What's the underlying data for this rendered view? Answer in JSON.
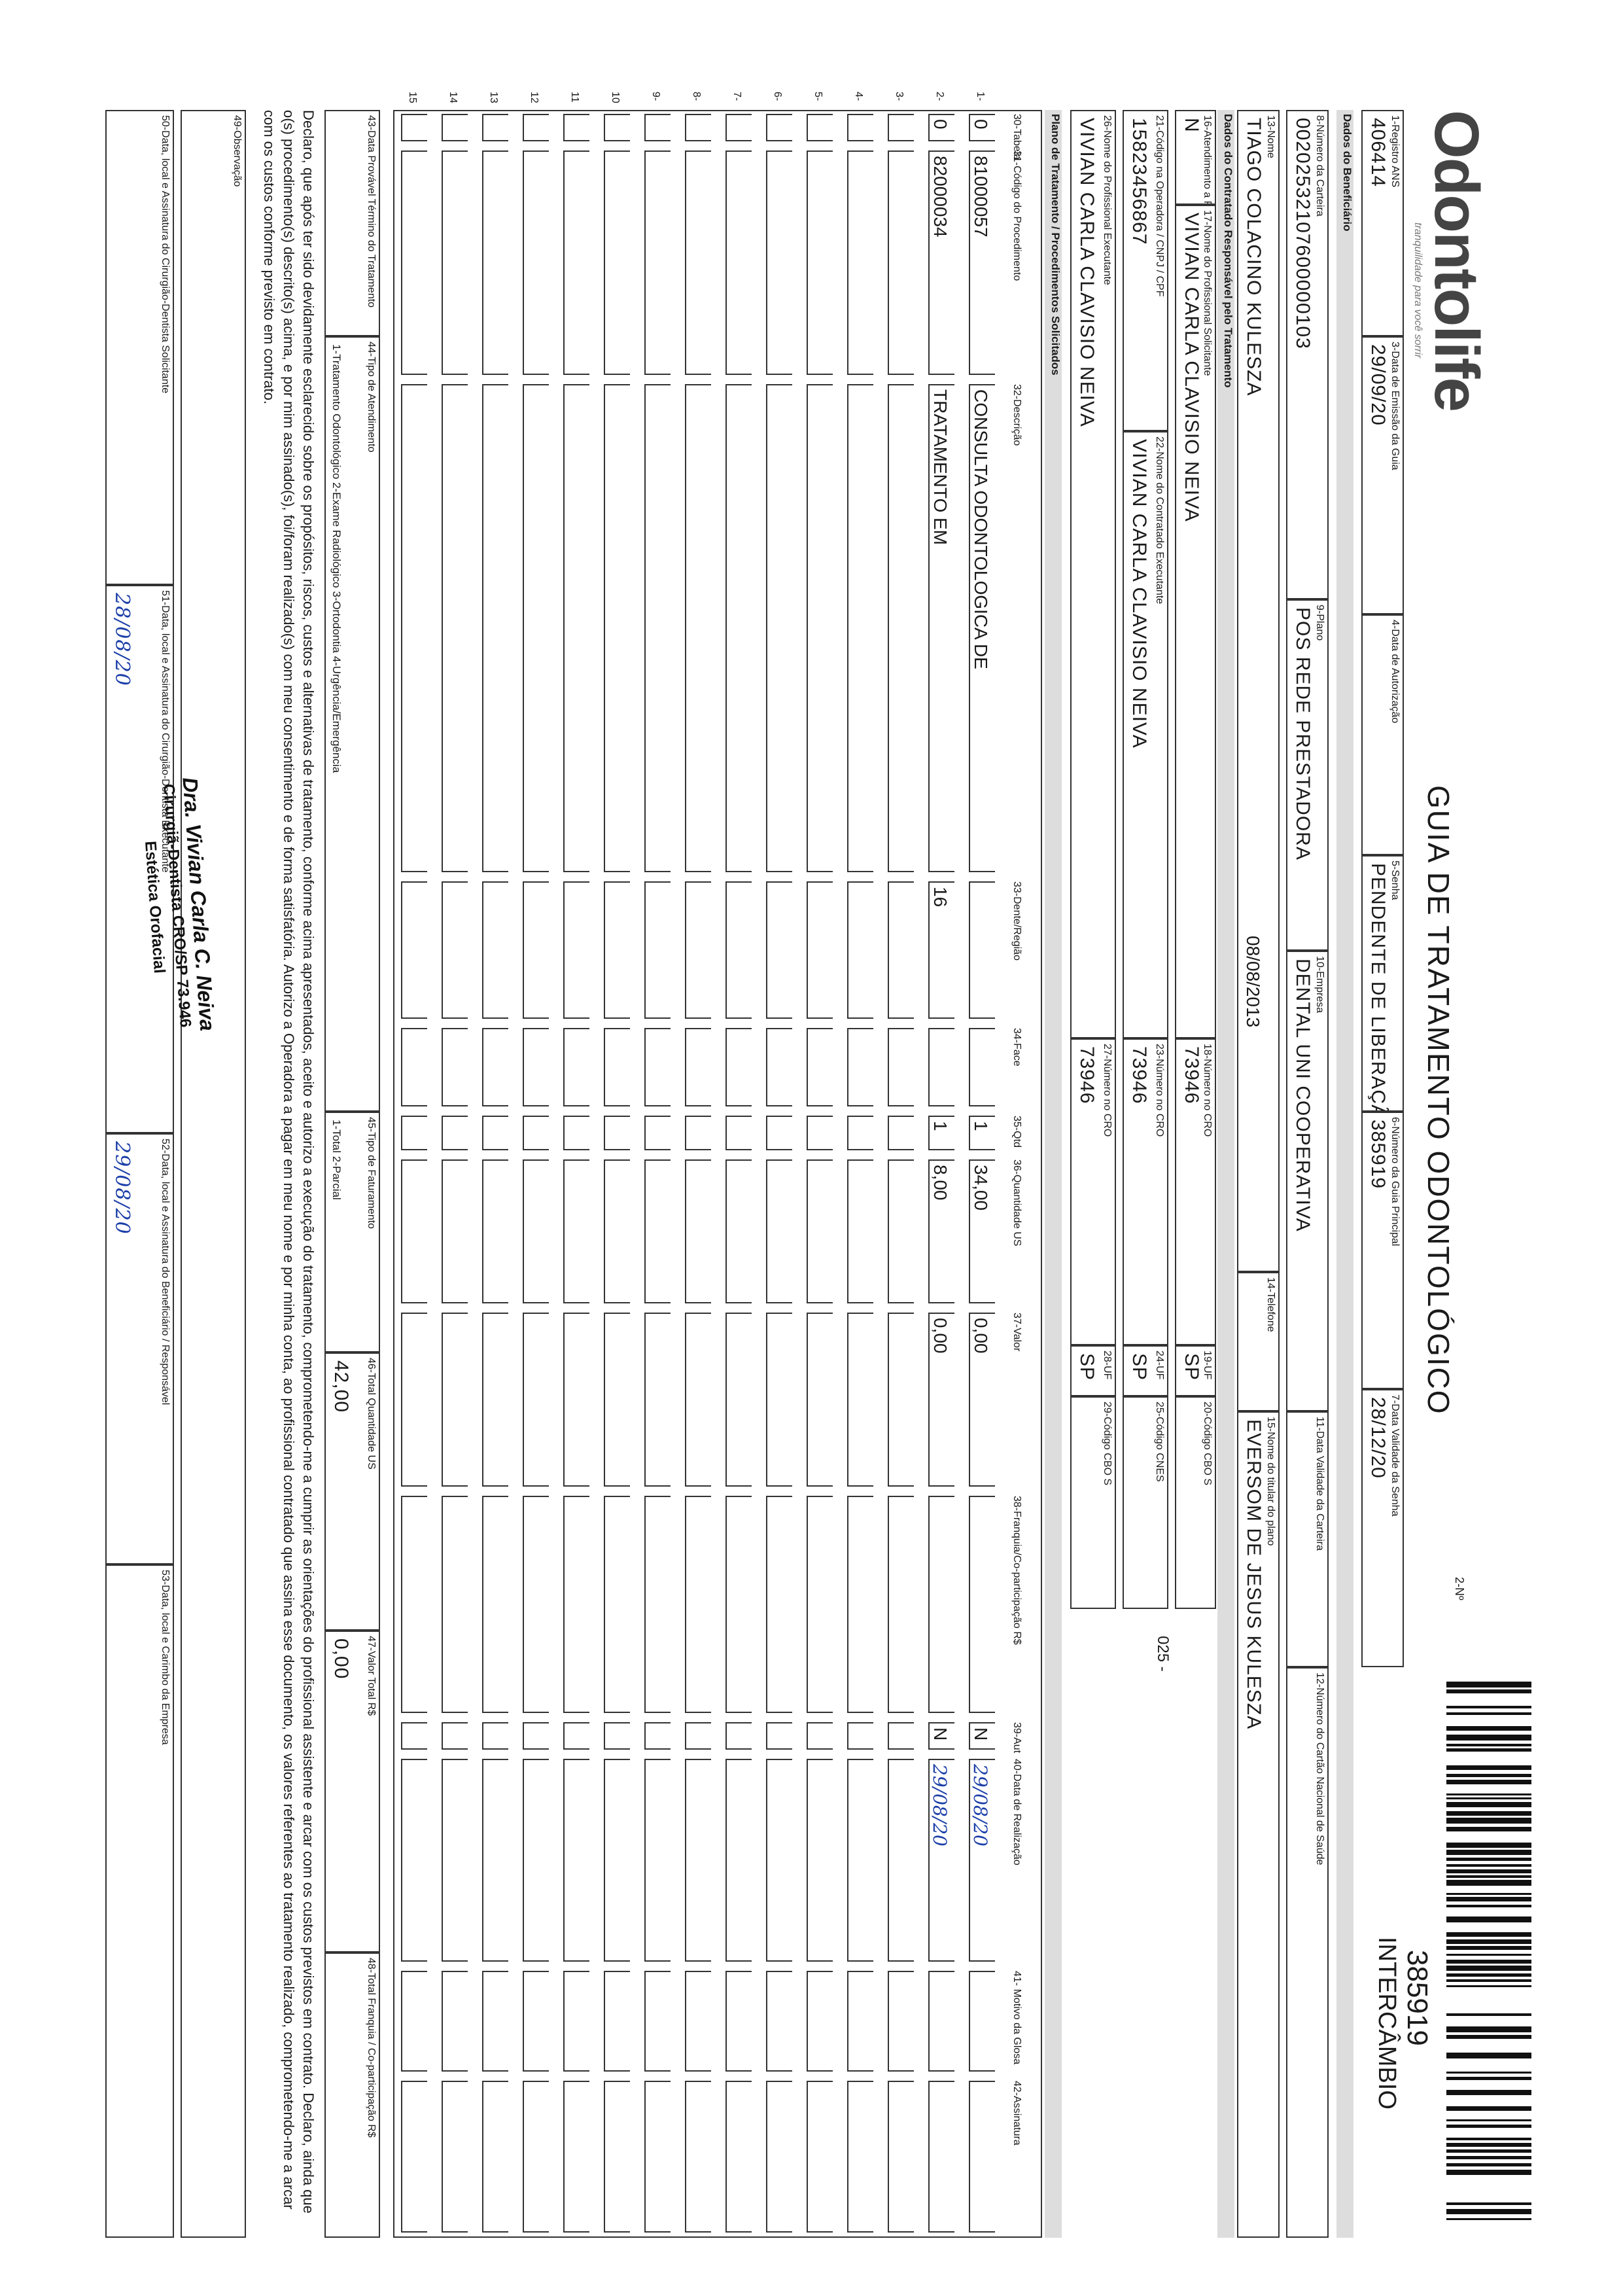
{
  "header": {
    "logo": "Odontolife",
    "tagline": "tranquilidade para você sorrir",
    "title": "GUIA DE TRATAMENTO ODONTOLÓGICO",
    "copy_label": "2-Nº",
    "guide_number": "385919",
    "exchange": "INTERCÂMBIO"
  },
  "sections": [
    "Dados do Beneficiário",
    "Dados do Contratado Responsável pelo Tratamento",
    "Plano de Tratamento / Procedimentos Solicitados"
  ],
  "fields": [
    {
      "label": "1-Registro ANS",
      "value": "406414"
    },
    {
      "label": "3-Data de Emissão da Guia",
      "value": "29/09/20"
    },
    {
      "label": "4-Data de Autorização",
      "value": null
    },
    {
      "label": "5-Senha",
      "value": "PENDENTE DE LIBERAÇÃO"
    },
    {
      "label": "6-Número da Guia Principal",
      "value": "385919"
    },
    {
      "label": "7-Data Validade da Senha",
      "value": "28/12/20"
    },
    {
      "label": "8-Número da Carteira",
      "value": "00202532107600000103"
    },
    {
      "label": "9-Plano",
      "value": "POS REDE PRESTADORA"
    },
    {
      "label": "10-Empresa",
      "value": "DENTAL UNI COOPERATIVA"
    },
    {
      "label": "11-Data Validade da Carteira",
      "value": null
    },
    {
      "label": "12-Número do Cartão Nacional de Saúde",
      "value": null
    },
    {
      "label": "13-Nome",
      "value": "TIAGO COLACINO KULESZA"
    },
    {
      "label": "14-Telefone",
      "value": null
    },
    {
      "label": "15-Nome do titular do plano",
      "value": "EVERSOM DE JESUS KULESZA"
    },
    {
      "label": "16-Atendimento a RN",
      "value": "N"
    },
    {
      "label": "17-Nome do Profissional Solicitante",
      "value": "VIVIAN CARLA CLAVISIO NEIVA"
    },
    {
      "label": "18-Número no CRO",
      "value": "73946"
    },
    {
      "label": "19-UF",
      "value": "SP"
    },
    {
      "label": "20-Código CBO S",
      "value": null
    },
    {
      "label": "21-Código na Operadora / CNPJ / CPF",
      "value": "15823456867"
    },
    {
      "label": "22-Nome do Contratado Executante",
      "value": "VIVIAN CARLA CLAVISIO NEIVA"
    },
    {
      "label": "23-Número no CRO",
      "value": "73946"
    },
    {
      "label": "24-UF",
      "value": "SP"
    },
    {
      "label": "25-Código CNES",
      "value": null
    },
    {
      "label": "26-Nome do Profissional Executante",
      "value": "VIVIAN CARLA CLAVISIO NEIVA"
    },
    {
      "label": "27-Número no CRO",
      "value": "73946"
    },
    {
      "label": "28-UF",
      "value": "SP"
    },
    {
      "label": "29-Código CBO S",
      "value": null
    }
  ],
  "notes": [
    "08/08/2013",
    "025 -"
  ],
  "table": {
    "columns": [
      "30-Tabela",
      "31-Código do Procedimento",
      "32-Descrição",
      "33-Dente/Região",
      "34-Face",
      "35-Qtd",
      "36-Quantidade US",
      "37-Valor",
      "38-Franquia/Co-participação R$",
      "39-Aut",
      "40-Data de Realização",
      "41- Motivo da Glosa",
      "42-Assinatura"
    ],
    "rows": [
      {
        "number": "1-",
        "cells": [
          "0",
          "81000057",
          "CONSULTA ODONTOLOGICA DE",
          null,
          null,
          "1",
          "34,00",
          "0,00",
          null,
          "N",
          "29/08/20",
          null,
          null
        ]
      },
      {
        "number": "2-",
        "cells": [
          "0",
          "82000034",
          "TRATAMENTO EM",
          "16",
          null,
          "1",
          "8,00",
          "0,00",
          null,
          "N",
          "29/08/20",
          null,
          null
        ]
      },
      {
        "number": "3-",
        "cells": [
          null,
          null,
          null,
          null,
          null,
          null,
          null,
          null,
          null,
          null,
          null,
          null,
          null
        ]
      },
      {
        "number": "4-",
        "cells": [
          null,
          null,
          null,
          null,
          null,
          null,
          null,
          null,
          null,
          null,
          null,
          null,
          null
        ]
      },
      {
        "number": "5-",
        "cells": [
          null,
          null,
          null,
          null,
          null,
          null,
          null,
          null,
          null,
          null,
          null,
          null,
          null
        ]
      },
      {
        "number": "6-",
        "cells": [
          null,
          null,
          null,
          null,
          null,
          null,
          null,
          null,
          null,
          null,
          null,
          null,
          null
        ]
      },
      {
        "number": "7-",
        "cells": [
          null,
          null,
          null,
          null,
          null,
          null,
          null,
          null,
          null,
          null,
          null,
          null,
          null
        ]
      },
      {
        "number": "8-",
        "cells": [
          null,
          null,
          null,
          null,
          null,
          null,
          null,
          null,
          null,
          null,
          null,
          null,
          null
        ]
      },
      {
        "number": "9-",
        "cells": [
          null,
          null,
          null,
          null,
          null,
          null,
          null,
          null,
          null,
          null,
          null,
          null,
          null
        ]
      },
      {
        "number": "10",
        "cells": [
          null,
          null,
          null,
          null,
          null,
          null,
          null,
          null,
          null,
          null,
          null,
          null,
          null
        ]
      },
      {
        "number": "11",
        "cells": [
          null,
          null,
          null,
          null,
          null,
          null,
          null,
          null,
          null,
          null,
          null,
          null,
          null
        ]
      },
      {
        "number": "12",
        "cells": [
          null,
          null,
          null,
          null,
          null,
          null,
          null,
          null,
          null,
          null,
          null,
          null,
          null
        ]
      },
      {
        "number": "13",
        "cells": [
          null,
          null,
          null,
          null,
          null,
          null,
          null,
          null,
          null,
          null,
          null,
          null,
          null
        ]
      },
      {
        "number": "14",
        "cells": [
          null,
          null,
          null,
          null,
          null,
          null,
          null,
          null,
          null,
          null,
          null,
          null,
          null
        ]
      },
      {
        "number": "15",
        "cells": [
          null,
          null,
          null,
          null,
          null,
          null,
          null,
          null,
          null,
          null,
          null,
          null,
          null
        ]
      }
    ]
  },
  "summary": [
    {
      "label": "43-Data Provável Término do Tratamento",
      "value": null
    },
    {
      "label": "44-Tipo de Atendimento",
      "value": "1-Tratamento Odontológico  2-Exame Radiológico  3-Ortodontia  4-Urgência/Emergência"
    },
    {
      "label": "45-Tipo de Faturamento",
      "value": "1-Total  2-Parcial"
    },
    {
      "label": "46-Total Quantidade US",
      "value": "42,00"
    },
    {
      "label": "47-Valor Total R$",
      "value": "0,00"
    },
    {
      "label": "48-Total Franquia / Co-participação R$",
      "value": null
    }
  ],
  "declaration": "Declaro, que após ter sido devidamente esclarecido sobre os propósitos, riscos, custos e alternativas de tratamento, conforme acima apresentados, aceito e autorizo a execução do tratamento, comprometendo-me a cumprir as orientações do profissional assistente e arcar com os custos previstos em contrato. Declaro, ainda que o(s) procedimento(s) descrito(s) acima, e por mim assinado(s), foi/foram realizado(s) com meu consentimento e de forma satisfatória. Autorizo a Operadora a pagar em meu nome e por minha conta, ao profissional contratado que assina esse documento, os valores referentes ao tratamento realizado, comprometendo-me a arcar com os custos conforme previsto em contrato.",
  "footer": [
    {
      "label": "49-Observação",
      "value": null
    },
    {
      "label": "50-Data, local e Assinatura do Cirurgião-Dentista Solicitante",
      "value": null
    },
    {
      "label": "51-Data, local e Assinatura do Cirurgião-Dentista Executante",
      "value": "28/08/20"
    },
    {
      "label": "52-Data, local e Assinatura do Beneficiário / Responsável",
      "value": "29/08/20"
    },
    {
      "label": "53-Data, local e Carimbo da Empresa",
      "value": null
    }
  ],
  "stamp": [
    "Dra. Vivian Carla C. Neiva",
    "Cirurgiã-Dentista CRO/SP 73.946",
    "Estética Orofacial"
  ]
}
